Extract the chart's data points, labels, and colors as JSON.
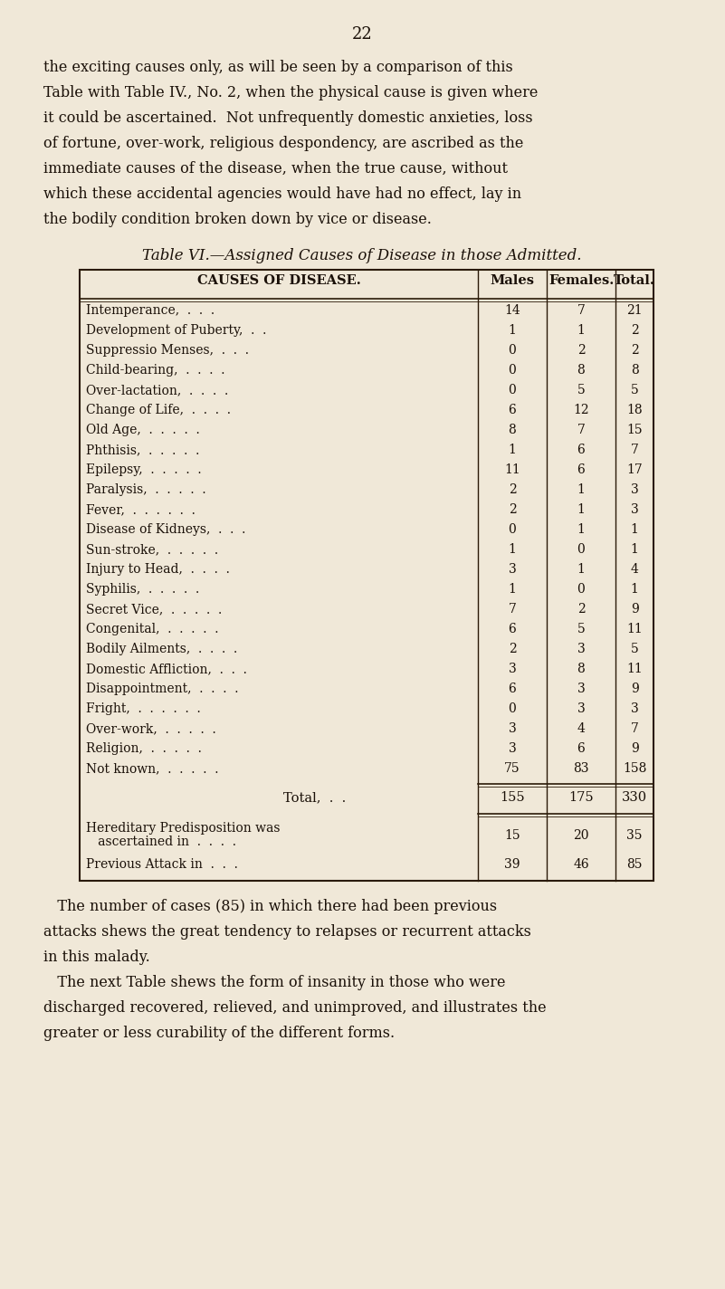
{
  "page_number": "22",
  "intro_text": [
    "the exciting causes only, as will be seen by a comparison of this",
    "Table with Table IV., No. 2, when the physical cause is given where",
    "it could be ascertained.  Not unfrequently domestic anxieties, loss",
    "of fortune, over-work, religious despondency, are ascribed as the",
    "immediate causes of the disease, when the true cause, without",
    "which these accidental agencies would have had no effect, lay in",
    "the bodily condition broken down by vice or disease."
  ],
  "table_title": "Table VI.—Assigned Causes of Disease in those Admitted.",
  "col_headers": [
    "CAUSES OF DISEASE.",
    "Males",
    "Females.",
    "Total."
  ],
  "rows": [
    {
      "cause": "Intemperance,  .  .  .",
      "males": 14,
      "females": 7,
      "total": 21
    },
    {
      "cause": "Development of Puberty,  .  .",
      "males": 1,
      "females": 1,
      "total": 2
    },
    {
      "cause": "Suppressio Menses,  .  .  .",
      "males": 0,
      "females": 2,
      "total": 2
    },
    {
      "cause": "Child-bearing,  .  .  .  .",
      "males": 0,
      "females": 8,
      "total": 8
    },
    {
      "cause": "Over-lactation,  .  .  .  .",
      "males": 0,
      "females": 5,
      "total": 5
    },
    {
      "cause": "Change of Life,  .  .  .  .",
      "males": 6,
      "females": 12,
      "total": 18
    },
    {
      "cause": "Old Age,  .  .  .  .  .",
      "males": 8,
      "females": 7,
      "total": 15
    },
    {
      "cause": "Phthisis,  .  .  .  .  .",
      "males": 1,
      "females": 6,
      "total": 7
    },
    {
      "cause": "Epilepsy,  .  .  .  .  .",
      "males": 11,
      "females": 6,
      "total": 17
    },
    {
      "cause": "Paralysis,  .  .  .  .  .",
      "males": 2,
      "females": 1,
      "total": 3
    },
    {
      "cause": "Fever,  .  .  .  .  .  .",
      "males": 2,
      "females": 1,
      "total": 3
    },
    {
      "cause": "Disease of Kidneys,  .  .  .",
      "males": 0,
      "females": 1,
      "total": 1
    },
    {
      "cause": "Sun-stroke,  .  .  .  .  .",
      "males": 1,
      "females": 0,
      "total": 1
    },
    {
      "cause": "Injury to Head,  .  .  .  .",
      "males": 3,
      "females": 1,
      "total": 4
    },
    {
      "cause": "Syphilis,  .  .  .  .  .",
      "males": 1,
      "females": 0,
      "total": 1
    },
    {
      "cause": "Secret Vice,  .  .  .  .  .",
      "males": 7,
      "females": 2,
      "total": 9
    },
    {
      "cause": "Congenital,  .  .  .  .  .",
      "males": 6,
      "females": 5,
      "total": 11
    },
    {
      "cause": "Bodily Ailments,  .  .  .  .",
      "males": 2,
      "females": 3,
      "total": 5
    },
    {
      "cause": "Domestic Affliction,  .  .  .",
      "males": 3,
      "females": 8,
      "total": 11
    },
    {
      "cause": "Disappointment,  .  .  .  .",
      "males": 6,
      "females": 3,
      "total": 9
    },
    {
      "cause": "Fright,  .  .  .  .  .  .",
      "males": 0,
      "females": 3,
      "total": 3
    },
    {
      "cause": "Over-work,  .  .  .  .  .",
      "males": 3,
      "females": 4,
      "total": 7
    },
    {
      "cause": "Religion,  .  .  .  .  .",
      "males": 3,
      "females": 6,
      "total": 9
    },
    {
      "cause": "Not known,  .  .  .  .  .",
      "males": 75,
      "females": 83,
      "total": 158
    }
  ],
  "total_row": {
    "label": "Total,  .  .",
    "males": 155,
    "females": 175,
    "total": 330
  },
  "footer_rows": [
    {
      "label1": "Hereditary Predisposition was",
      "label2": "   ascertained in  .  .  .  .",
      "males": 15,
      "females": 20,
      "total": 35
    },
    {
      "label1": "Previous Attack in  .  .  .",
      "label2": "",
      "males": 39,
      "females": 46,
      "total": 85
    }
  ],
  "outro_text": [
    "   The number of cases (85) in which there had been previous",
    "attacks shews the great tendency to relapses or recurrent attacks",
    "in this malady.",
    "   The next Table shews the form of insanity in those who were",
    "discharged recovered, relieved, and unimproved, and illustrates the",
    "greater or less curability of the different forms."
  ],
  "bg_color": "#f0e8d8",
  "text_color": "#1a1008",
  "line_color": "#2a1a08"
}
